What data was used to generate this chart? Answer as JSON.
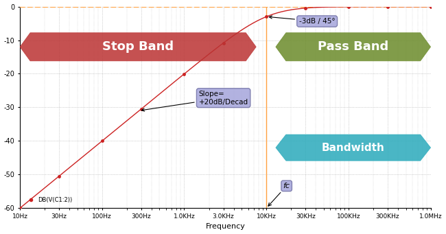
{
  "xlabel": "Frequency",
  "legend_label": "DB(V(C1:2))",
  "xlim_log": [
    10,
    1000000
  ],
  "ylim": [
    -60,
    0
  ],
  "yticks": [
    0,
    -10,
    -20,
    -30,
    -40,
    -50,
    -60
  ],
  "xtick_labels": [
    "10Hz",
    "30Hz",
    "100Hz",
    "300Hz",
    "1.0KHz",
    "3.0KHz",
    "10KHz",
    "30KHz",
    "100KHz",
    "300KHz",
    "1.0MHz"
  ],
  "xtick_vals": [
    10,
    30,
    100,
    300,
    1000,
    3000,
    10000,
    30000,
    100000,
    300000,
    1000000
  ],
  "fc_freq": 10000,
  "fc_label": "fc",
  "slope_label": "Slope=\n+20dB/Decad",
  "minus3db_label": "-3dB / 45°",
  "stop_band_label": "Stop Band",
  "pass_band_label": "Pass Band",
  "bandwidth_label": "Bandwidth",
  "hline_color": "#FFA040",
  "vline_color": "#FFA040",
  "curve_color": "#CC2222",
  "dot_color": "#CC2222",
  "bg_color": "#FFFFFF",
  "grid_color": "#AAAAAA",
  "stop_band_color": "#BB3333",
  "pass_band_color": "#6B8B2A",
  "bandwidth_color": "#2AAABB",
  "slope_box_facecolor": "#AAAADD",
  "slope_box_edgecolor": "#7777AA",
  "minus3db_box_facecolor": "#AAAADD",
  "minus3db_box_edgecolor": "#7777AA",
  "fc_box_facecolor": "#AAAADD",
  "fc_box_edgecolor": "#7777AA"
}
